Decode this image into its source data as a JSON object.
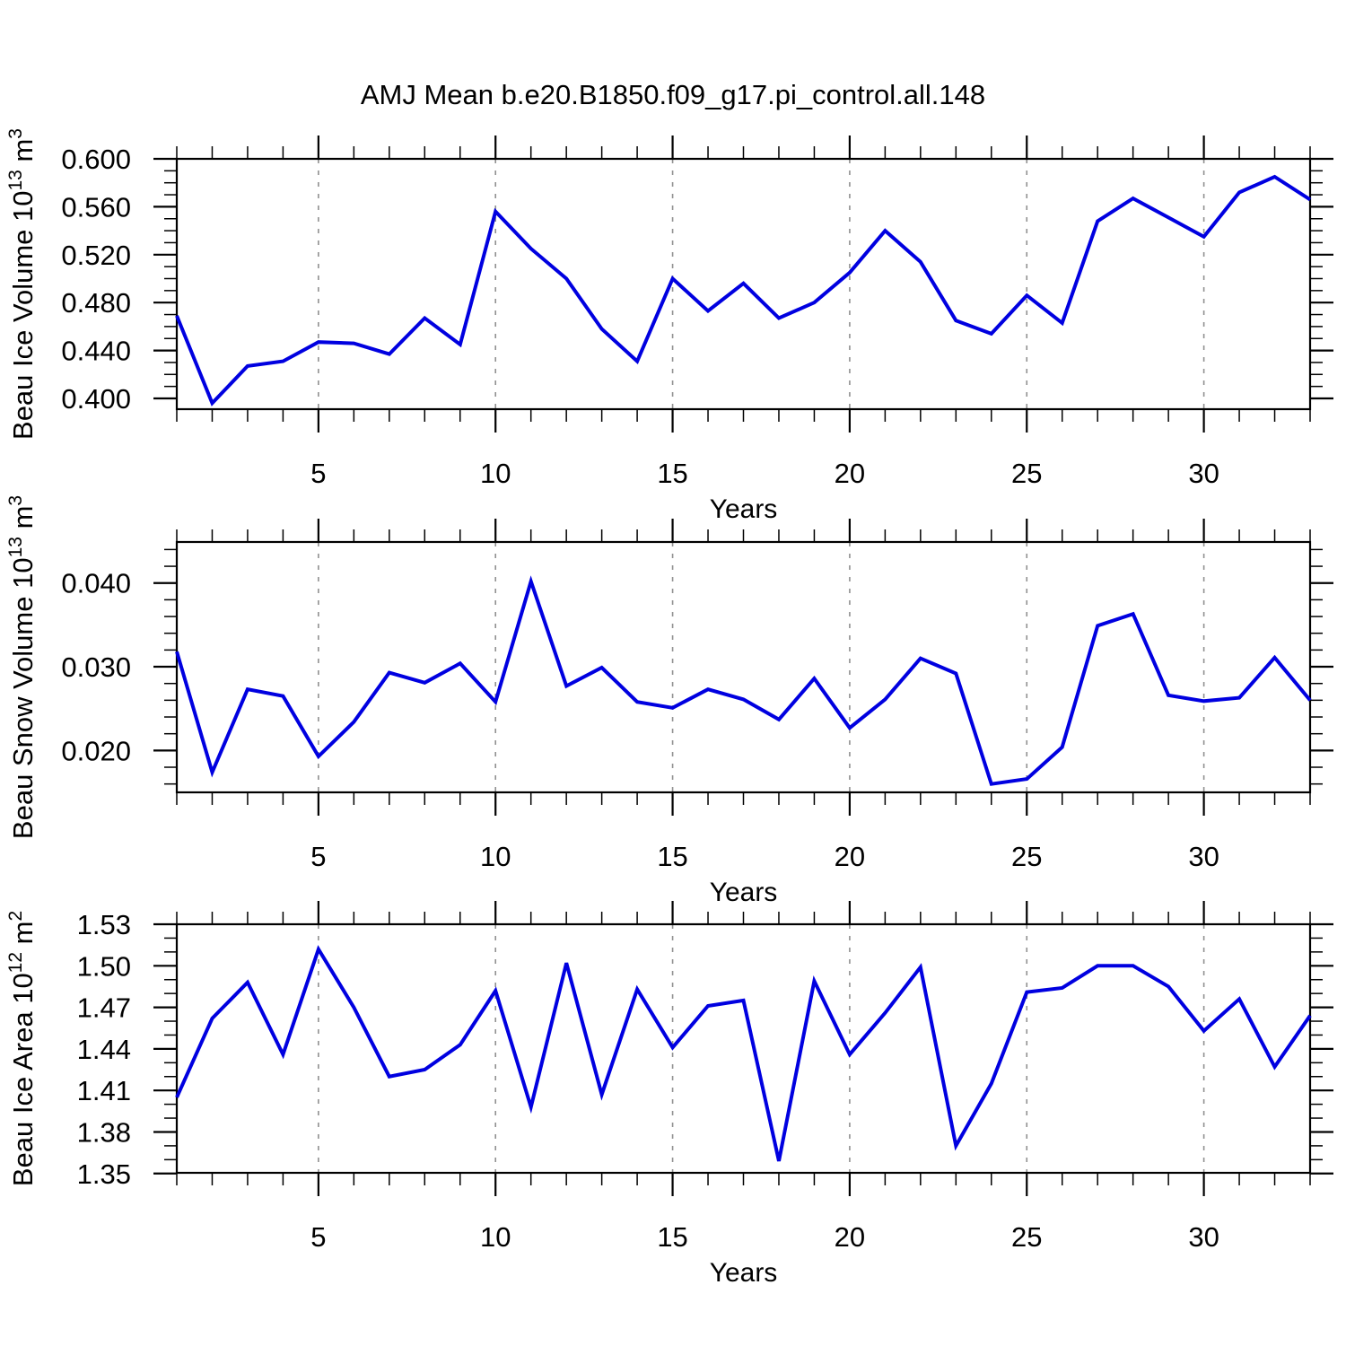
{
  "title": "AMJ Mean b.e20.B1850.f09_g17.pi_control.all.148",
  "style": {
    "line_color": "#0000e0",
    "grid_color": "#909090",
    "axis_color": "#000000",
    "background": "#ffffff"
  },
  "chart_data": [
    {
      "id": "beau-ice-volume",
      "type": "line",
      "title": "AMJ Mean b.e20.B1850.f09_g17.pi_control.all.148",
      "ylabel": "Beau Ice Volume 10^13 m^3",
      "ylabel_parts": [
        {
          "text": "Beau Ice Volume 10",
          "sup": false
        },
        {
          "text": "13",
          "sup": true
        },
        {
          "text": " m",
          "sup": false
        },
        {
          "text": "3",
          "sup": true
        }
      ],
      "xlabel": "Years",
      "x": [
        1,
        2,
        3,
        4,
        5,
        6,
        7,
        8,
        9,
        10,
        11,
        12,
        13,
        14,
        15,
        16,
        17,
        18,
        19,
        20,
        21,
        22,
        23,
        24,
        25,
        26,
        27,
        28,
        29,
        30,
        31,
        32,
        33
      ],
      "values": [
        0.469,
        0.396,
        0.427,
        0.431,
        0.447,
        0.446,
        0.437,
        0.467,
        0.445,
        0.556,
        0.525,
        0.5,
        0.458,
        0.431,
        0.5,
        0.473,
        0.496,
        0.467,
        0.48,
        0.505,
        0.54,
        0.514,
        0.465,
        0.454,
        0.486,
        0.463,
        0.548,
        0.567,
        0.551,
        0.535,
        0.572,
        0.585,
        0.566
      ],
      "xlim": [
        1,
        33
      ],
      "ylim": [
        0.391,
        0.6
      ],
      "xticks": [
        5,
        10,
        15,
        20,
        25,
        30
      ],
      "xtick_labels": [
        "5",
        "10",
        "15",
        "20",
        "25",
        "30"
      ],
      "x_minor_step": 1,
      "yticks": [
        0.4,
        0.44,
        0.48,
        0.52,
        0.56,
        0.6
      ],
      "ytick_labels": [
        "0.400",
        "0.440",
        "0.480",
        "0.520",
        "0.560",
        "0.600"
      ],
      "y_minor_step": 0.01,
      "grid": "vertical-dashed"
    },
    {
      "id": "beau-snow-volume",
      "type": "line",
      "title": "",
      "ylabel": "Beau Snow Volume 10^13 m^3",
      "ylabel_parts": [
        {
          "text": "Beau Snow Volume 10",
          "sup": false
        },
        {
          "text": "13",
          "sup": true
        },
        {
          "text": " m",
          "sup": false
        },
        {
          "text": "3",
          "sup": true
        }
      ],
      "xlabel": "Years",
      "x": [
        1,
        2,
        3,
        4,
        5,
        6,
        7,
        8,
        9,
        10,
        11,
        12,
        13,
        14,
        15,
        16,
        17,
        18,
        19,
        20,
        21,
        22,
        23,
        24,
        25,
        26,
        27,
        28,
        29,
        30,
        31,
        32,
        33
      ],
      "values": [
        0.0318,
        0.0174,
        0.0273,
        0.0265,
        0.0193,
        0.0234,
        0.0293,
        0.0281,
        0.0304,
        0.0258,
        0.0402,
        0.0277,
        0.0299,
        0.0258,
        0.0251,
        0.0273,
        0.0261,
        0.0237,
        0.0286,
        0.0227,
        0.0261,
        0.031,
        0.0292,
        0.016,
        0.0166,
        0.0204,
        0.0349,
        0.0363,
        0.0266,
        0.0259,
        0.0263,
        0.0311,
        0.026
      ],
      "xlim": [
        1,
        33
      ],
      "ylim": [
        0.015,
        0.0449
      ],
      "xticks": [
        5,
        10,
        15,
        20,
        25,
        30
      ],
      "xtick_labels": [
        "5",
        "10",
        "15",
        "20",
        "25",
        "30"
      ],
      "x_minor_step": 1,
      "yticks": [
        0.02,
        0.03,
        0.04
      ],
      "ytick_labels": [
        "0.020",
        "0.030",
        "0.040"
      ],
      "y_minor_step": 0.002,
      "grid": "vertical-dashed"
    },
    {
      "id": "beau-ice-area",
      "type": "line",
      "title": "",
      "ylabel": "Beau Ice Area 10^12 m^2",
      "ylabel_parts": [
        {
          "text": "Beau Ice Area 10",
          "sup": false
        },
        {
          "text": "12",
          "sup": true
        },
        {
          "text": " m",
          "sup": false
        },
        {
          "text": "2",
          "sup": true
        }
      ],
      "xlabel": "Years",
      "x": [
        1,
        2,
        3,
        4,
        5,
        6,
        7,
        8,
        9,
        10,
        11,
        12,
        13,
        14,
        15,
        16,
        17,
        18,
        19,
        20,
        21,
        22,
        23,
        24,
        25,
        26,
        27,
        28,
        29,
        30,
        31,
        32,
        33
      ],
      "values": [
        1.405,
        1.462,
        1.488,
        1.436,
        1.512,
        1.47,
        1.42,
        1.425,
        1.443,
        1.482,
        1.398,
        1.502,
        1.407,
        1.483,
        1.441,
        1.471,
        1.475,
        1.359,
        1.489,
        1.436,
        1.466,
        1.499,
        1.37,
        1.415,
        1.481,
        1.484,
        1.5,
        1.5,
        1.485,
        1.453,
        1.476,
        1.427,
        1.464
      ],
      "xlim": [
        1,
        33
      ],
      "ylim": [
        1.3505,
        1.53
      ],
      "xticks": [
        5,
        10,
        15,
        20,
        25,
        30
      ],
      "xtick_labels": [
        "5",
        "10",
        "15",
        "20",
        "25",
        "30"
      ],
      "x_minor_step": 1,
      "yticks": [
        1.35,
        1.38,
        1.41,
        1.44,
        1.47,
        1.5,
        1.53
      ],
      "ytick_labels": [
        "1.35",
        "1.38",
        "1.41",
        "1.44",
        "1.47",
        "1.50",
        "1.53"
      ],
      "y_minor_step": 0.01,
      "grid": "vertical-dashed"
    }
  ]
}
